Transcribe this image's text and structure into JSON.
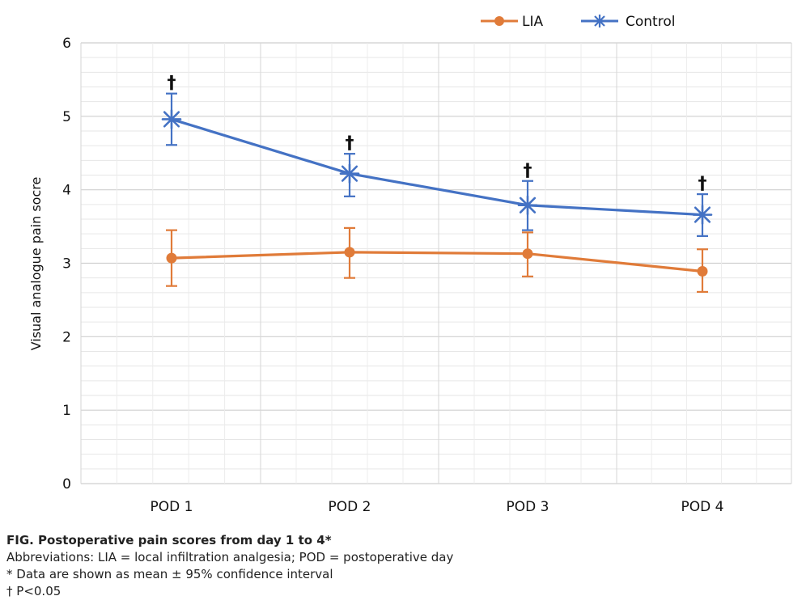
{
  "chart_data": {
    "type": "line",
    "title": "",
    "xlabel": "",
    "ylabel": "Visual analogue pain socre",
    "categories": [
      "POD 1",
      "POD 2",
      "POD 3",
      "POD 4"
    ],
    "ylim": [
      0,
      6
    ],
    "yticks": [
      0,
      1,
      2,
      3,
      4,
      5,
      6
    ],
    "grid": true,
    "legend_position": "top-right",
    "series": [
      {
        "name": "LIA",
        "color": "#E07B39",
        "marker": "circle",
        "values": [
          3.07,
          3.15,
          3.13,
          2.89
        ],
        "ci_low": [
          2.69,
          2.8,
          2.82,
          2.61
        ],
        "ci_high": [
          3.45,
          3.48,
          3.42,
          3.19
        ]
      },
      {
        "name": "Control",
        "color": "#4472C4",
        "marker": "asterisk",
        "values": [
          4.96,
          4.22,
          3.79,
          3.66
        ],
        "ci_low": [
          4.61,
          3.91,
          3.45,
          3.37
        ],
        "ci_high": [
          5.31,
          4.49,
          4.12,
          3.94
        ]
      }
    ],
    "annotations": [
      {
        "text": "†",
        "category": "POD 1",
        "y": 5.31
      },
      {
        "text": "†",
        "category": "POD 2",
        "y": 4.49
      },
      {
        "text": "†",
        "category": "POD 3",
        "y": 4.12
      },
      {
        "text": "†",
        "category": "POD 4",
        "y": 3.94
      }
    ]
  },
  "caption": {
    "title": "FIG.  Postoperative pain scores from day 1 to 4*",
    "lines": [
      "Abbreviations: LIA = local infiltration analgesia; POD = postoperative day",
      "*   Data are shown as mean ± 95% confidence interval",
      "†   P<0.05"
    ]
  }
}
